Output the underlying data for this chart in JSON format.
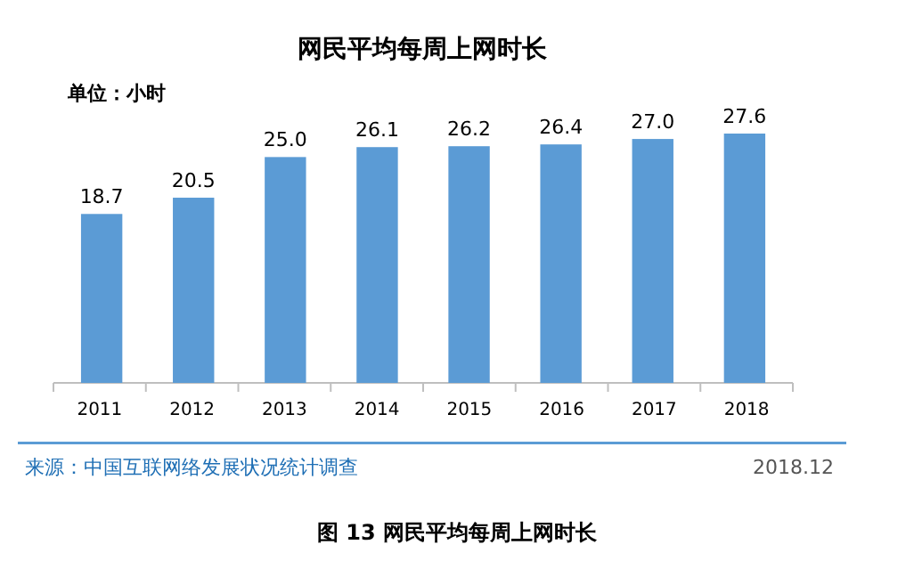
{
  "chart_data": {
    "type": "bar",
    "title": "网民平均每周上网时长",
    "subtitle": "单位：小时",
    "categories": [
      "2011",
      "2012",
      "2013",
      "2014",
      "2015",
      "2016",
      "2017",
      "2018"
    ],
    "values": [
      18.7,
      20.5,
      25.0,
      26.1,
      26.2,
      26.4,
      27.0,
      27.6
    ],
    "value_labels": [
      "18.7",
      "20.5",
      "25.0",
      "26.1",
      "26.2",
      "26.4",
      "27.0",
      "27.6"
    ],
    "color": "#5b9bd5",
    "annotations": [
      "来源：中国互联网络发展状况统计调查",
      "2018.12",
      "图 13   网民平均每周上网时长"
    ]
  }
}
